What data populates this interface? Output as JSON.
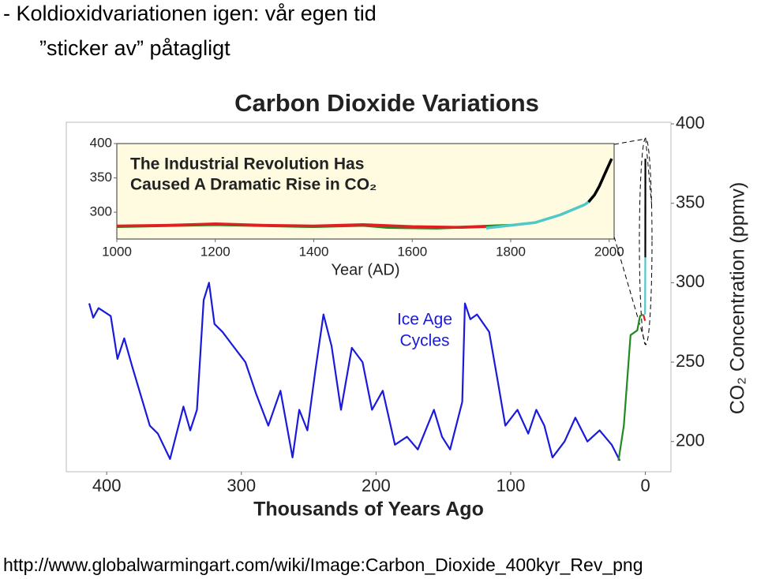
{
  "heading": [
    "- Koldioxidvariationen igen: vår egen tid",
    "”sticker av” påtagligt"
  ],
  "source": "http://www.globalwarmingart.com/wiki/Image:Carbon_Dioxide_400kyr_Rev_png",
  "chart_data": [
    {
      "type": "line",
      "title": "Carbon Dioxide Variations",
      "xlabel": "Thousands of Years Ago",
      "ylabel": "CO₂ Concentration (ppmv)",
      "annotation": [
        "Ice Age",
        "Cycles"
      ],
      "xlim": [
        430,
        -19
      ],
      "ylim": [
        181,
        401
      ],
      "xticks": [
        400,
        300,
        200,
        100,
        0
      ],
      "yticks": [
        200,
        250,
        300,
        350,
        400
      ],
      "series": [
        {
          "color": "#1a1adb",
          "x": [
            413,
            410,
            406,
            397,
            392,
            387,
            381,
            375,
            368,
            362,
            353,
            343,
            338,
            333,
            328,
            324,
            320,
            314,
            306,
            297,
            289,
            280,
            271,
            262,
            257,
            251,
            245,
            239,
            233,
            226,
            218,
            210,
            203,
            195,
            186,
            177,
            169,
            157,
            151,
            145,
            136,
            134,
            130,
            125,
            116,
            110,
            104,
            95,
            87,
            81,
            75,
            69,
            60,
            52,
            43,
            34,
            25,
            19
          ],
          "values": [
            287,
            278,
            284,
            279,
            252,
            265,
            247,
            230,
            210,
            205,
            189,
            222,
            207,
            220,
            289,
            300,
            274,
            269,
            260,
            250,
            230,
            210,
            232,
            190,
            220,
            207,
            245,
            280,
            260,
            220,
            259,
            250,
            220,
            232,
            198,
            203,
            195,
            220,
            203,
            195,
            225,
            287,
            277,
            280,
            269,
            240,
            210,
            220,
            205,
            220,
            210,
            190,
            200,
            215,
            200,
            207,
            198,
            188
          ]
        },
        {
          "color": "#1f8a1f",
          "x": [
            20,
            16,
            11,
            6,
            4,
            2
          ],
          "values": [
            188,
            210,
            267,
            270,
            279,
            280
          ]
        },
        {
          "color": "#e02020",
          "x": [
            1.5,
            0.2
          ],
          "values": [
            280,
            276
          ]
        },
        {
          "color": "#4fc8c8",
          "x": [
            0.25,
            0.05
          ],
          "values": [
            280,
            316
          ]
        },
        {
          "color": "#000000",
          "x": [
            0.05,
            0
          ],
          "values": [
            316,
            378
          ]
        }
      ]
    },
    {
      "type": "line",
      "xlabel": "Year (AD)",
      "annotation": [
        "The Industrial Revolution Has",
        "Caused A Dramatic Rise in CO₂"
      ],
      "xlim": [
        1000,
        2010
      ],
      "ylim": [
        261,
        400
      ],
      "xticks": [
        1000,
        1200,
        1400,
        1600,
        1800,
        2000
      ],
      "yticks": [
        300,
        350,
        400
      ],
      "series": [
        {
          "color": "#1f8a1f",
          "x": [
            1000,
            1200,
            1400,
            1500,
            1550,
            1650,
            1800
          ],
          "values": [
            279,
            282,
            279,
            281,
            278,
            277,
            281
          ]
        },
        {
          "color": "#e02020",
          "x": [
            1000,
            1100,
            1200,
            1300,
            1400,
            1500,
            1600,
            1700,
            1750
          ],
          "values": [
            280,
            281,
            283,
            281,
            280,
            282,
            279,
            278,
            279
          ]
        },
        {
          "color": "#4fc8c8",
          "x": [
            1750,
            1800,
            1850,
            1900,
            1950,
            1960
          ],
          "values": [
            277,
            281,
            285,
            296,
            311,
            316
          ]
        },
        {
          "color": "#000000",
          "x": [
            1958,
            1970,
            1980,
            1990,
            2005
          ],
          "values": [
            315,
            325,
            338,
            354,
            378
          ]
        }
      ]
    }
  ]
}
